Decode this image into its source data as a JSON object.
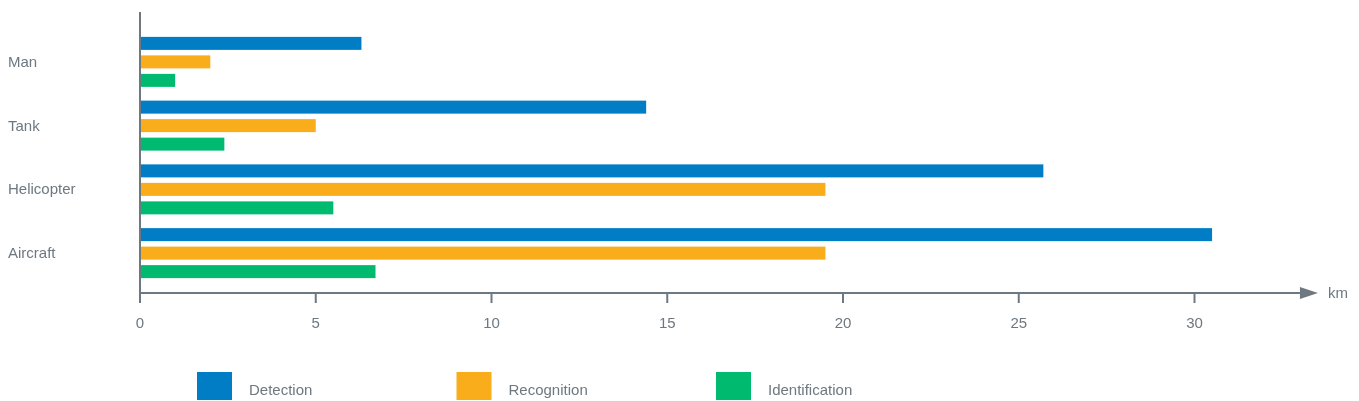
{
  "chart_data": {
    "type": "bar",
    "orientation": "horizontal",
    "categories": [
      "Man",
      "Tank",
      "Helicopter",
      "Aircraft"
    ],
    "xlabel": "km",
    "xlim": [
      0,
      33
    ],
    "xticks": [
      0,
      5,
      10,
      15,
      20,
      25,
      30
    ],
    "grid": false,
    "legend": "bottom",
    "series": [
      {
        "name": "Detection",
        "color": "#007dc5",
        "values": [
          6.3,
          14.4,
          25.7,
          30.5
        ]
      },
      {
        "name": "Recognition",
        "color": "#f9ad1b",
        "values": [
          2.0,
          5.0,
          19.5,
          19.5
        ]
      },
      {
        "name": "Identification",
        "color": "#00bb6f",
        "values": [
          1.0,
          2.4,
          5.5,
          6.7
        ]
      }
    ]
  }
}
